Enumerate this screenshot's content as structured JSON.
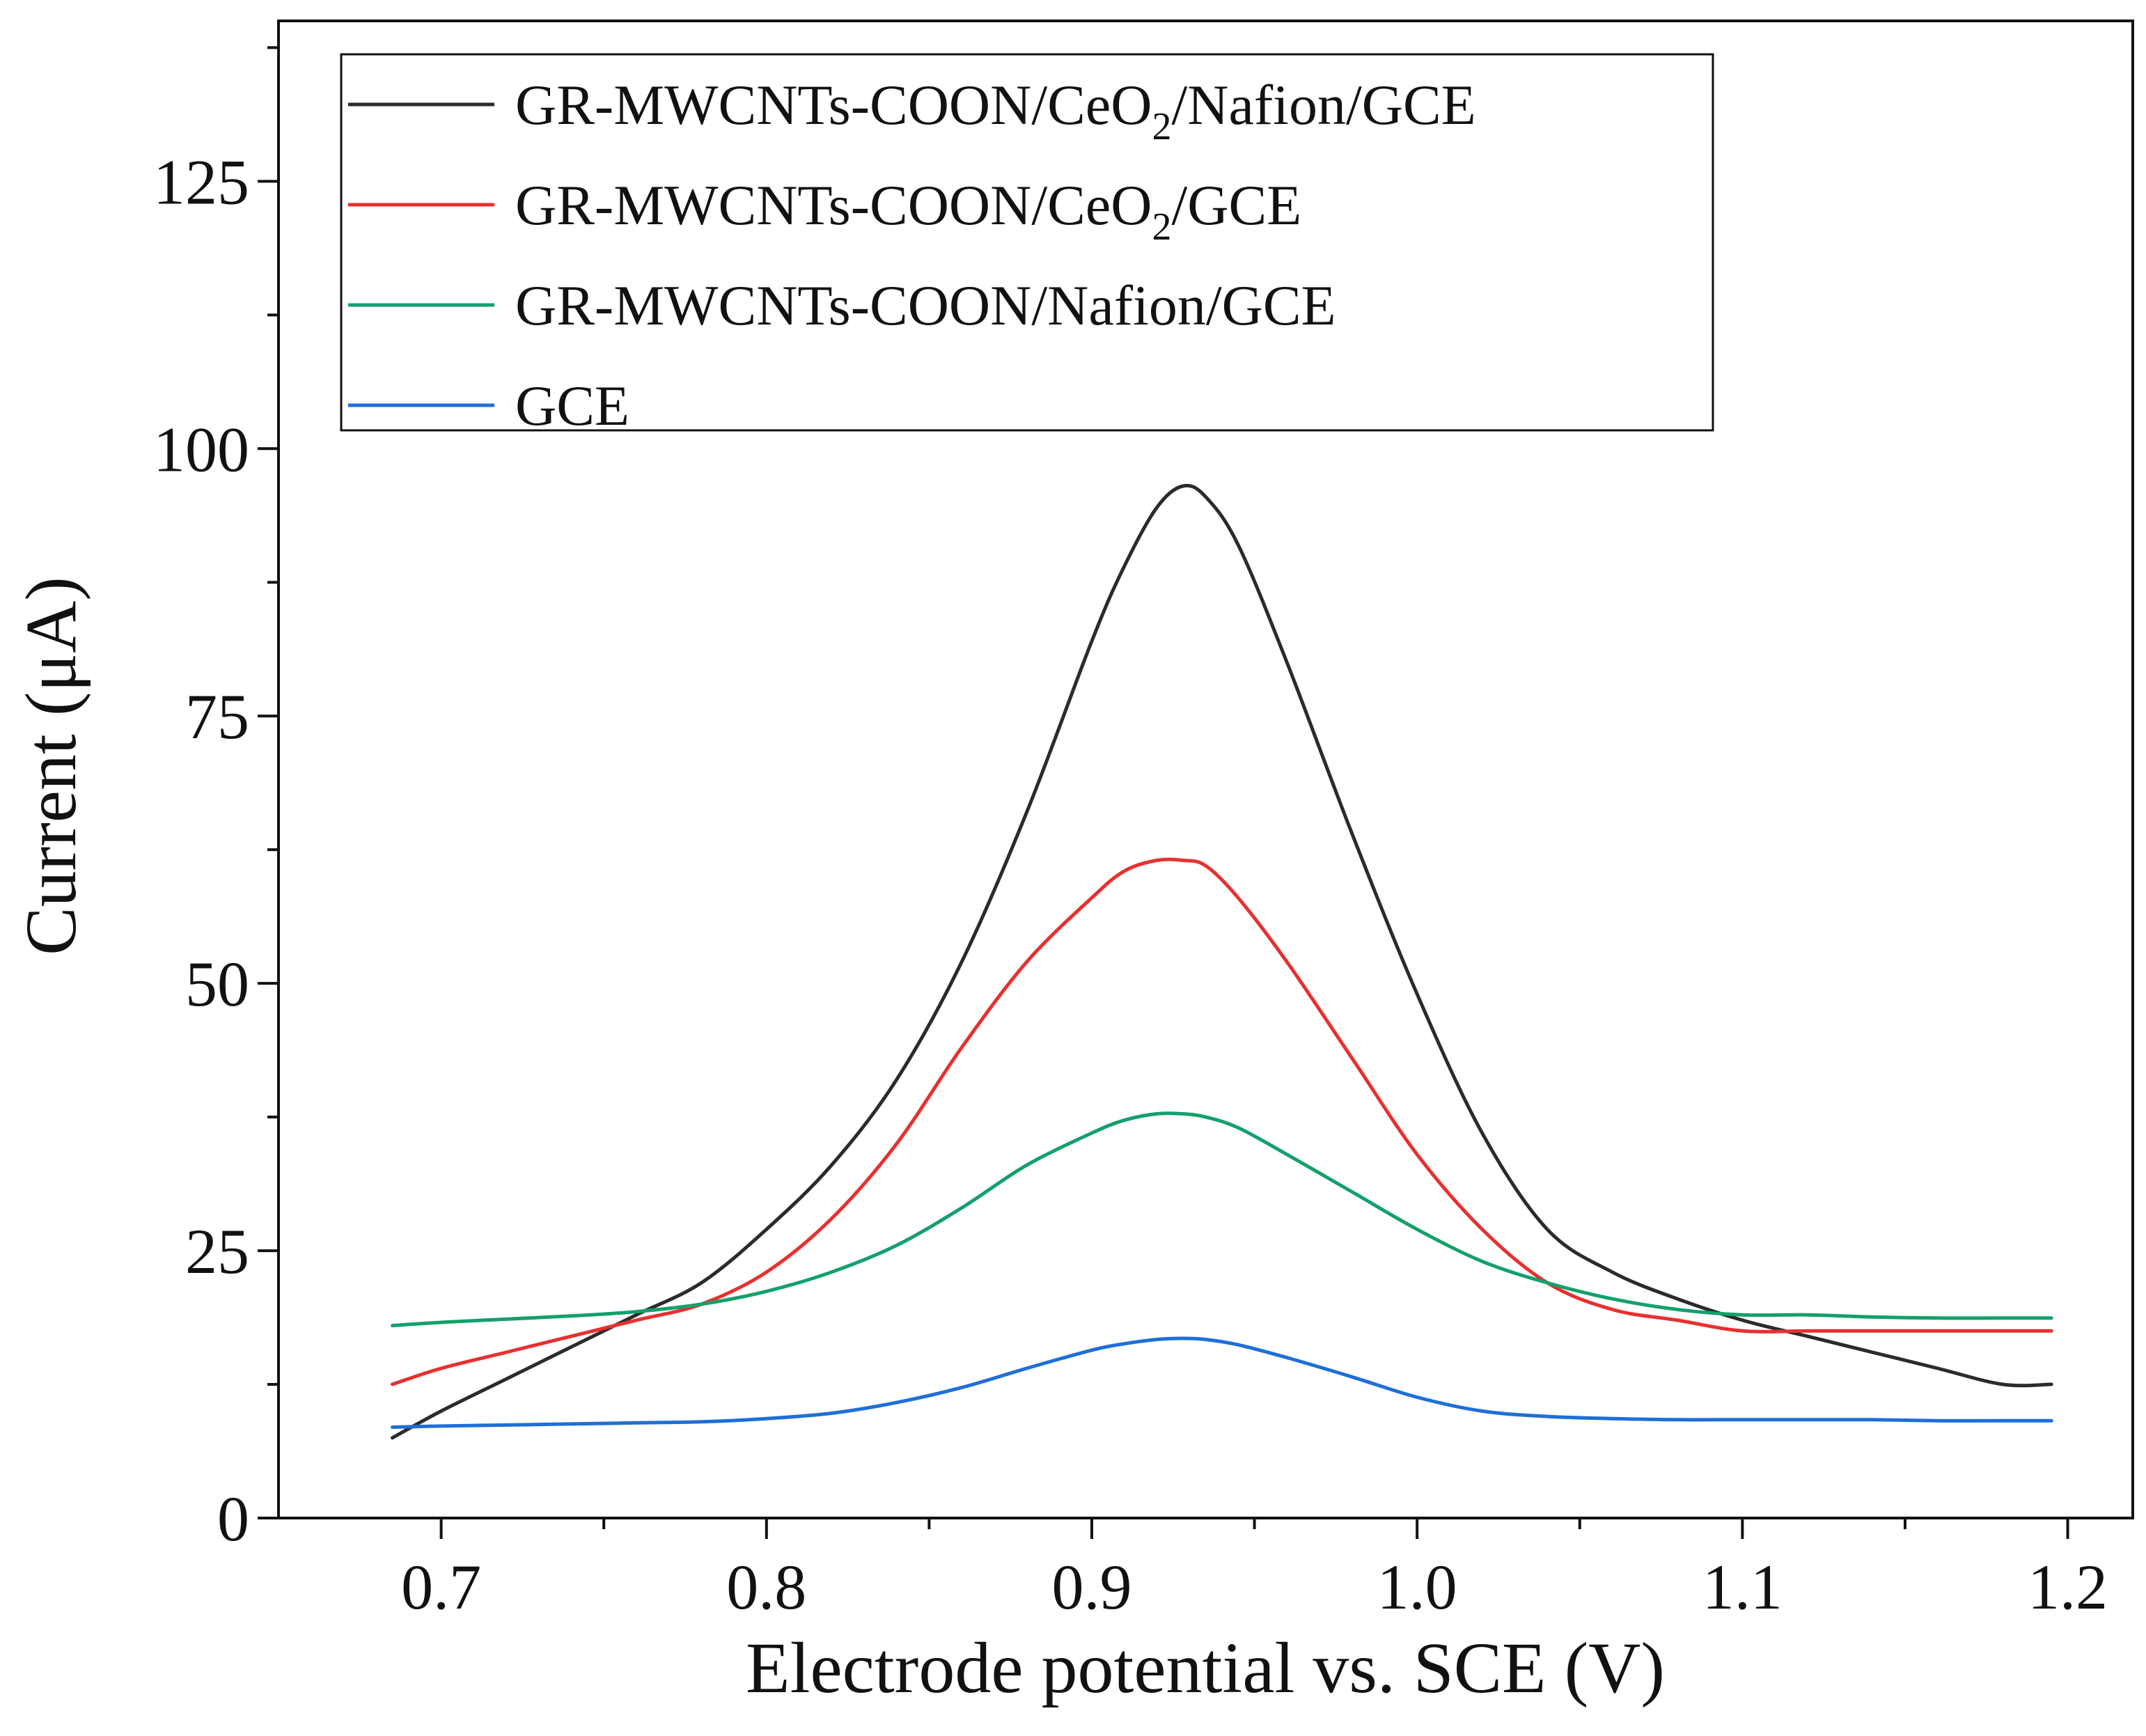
{
  "chart_data": {
    "type": "line",
    "title": "",
    "xlabel": "Electrode potential vs. SCE (V)",
    "ylabel": "Current (μA)",
    "xlim": [
      0.65,
      1.22
    ],
    "ylim": [
      0,
      140
    ],
    "xticks": [
      0.7,
      0.8,
      0.9,
      1.0,
      1.1,
      1.2
    ],
    "xtick_labels": [
      "0.7",
      "0.8",
      "0.9",
      "1.0",
      "1.1",
      "1.2"
    ],
    "xminor_ticks": [
      0.75,
      0.85,
      0.95,
      1.05,
      1.15
    ],
    "yticks": [
      0,
      25,
      50,
      75,
      100,
      125
    ],
    "ytick_labels": [
      "0",
      "25",
      "50",
      "75",
      "100",
      "125"
    ],
    "yminor_ticks": [
      12.5,
      37.5,
      62.5,
      87.5,
      112.5,
      137.5
    ],
    "grid": false,
    "legend_position": "top-left",
    "series": [
      {
        "name": "GR-MWCNTs-COON/CeO2/Nafion/GCE",
        "legend_label": {
          "before": "GR-MWCNTs-COON/CeO",
          "sub": "2",
          "after": "/Nafion/GCE"
        },
        "color": "#2b2b2b",
        "x": [
          0.685,
          0.7,
          0.72,
          0.74,
          0.76,
          0.78,
          0.8,
          0.82,
          0.84,
          0.86,
          0.88,
          0.9,
          0.91,
          0.92,
          0.928,
          0.935,
          0.945,
          0.96,
          0.98,
          1.0,
          1.02,
          1.04,
          1.06,
          1.08,
          1.1,
          1.12,
          1.14,
          1.16,
          1.18,
          1.195
        ],
        "y": [
          7.5,
          10,
          13,
          16,
          19,
          22,
          27,
          33,
          41,
          52,
          66,
          82,
          89,
          94.5,
          96.5,
          95.5,
          91,
          80,
          64,
          49,
          36,
          27,
          23,
          20.5,
          18.5,
          17,
          15.5,
          14,
          12.5,
          12.5
        ]
      },
      {
        "name": "GR-MWCNTs-COON/CeO2/GCE",
        "legend_label": {
          "before": "GR-MWCNTs-COON/CeO",
          "sub": "2",
          "after": "/GCE"
        },
        "color": "#e8302f",
        "x": [
          0.685,
          0.7,
          0.72,
          0.74,
          0.76,
          0.78,
          0.8,
          0.82,
          0.84,
          0.86,
          0.88,
          0.9,
          0.91,
          0.92,
          0.928,
          0.935,
          0.945,
          0.96,
          0.98,
          1.0,
          1.02,
          1.04,
          1.06,
          1.08,
          1.1,
          1.12,
          1.14,
          1.16,
          1.18,
          1.195
        ],
        "y": [
          12.5,
          14,
          15.5,
          17,
          18.5,
          20,
          23,
          28,
          35,
          44,
          52,
          58,
          60.5,
          61.5,
          61.5,
          61,
          58,
          52,
          43,
          34,
          27,
          22,
          19.5,
          18.5,
          17.5,
          17.5,
          17.5,
          17.5,
          17.5,
          17.5
        ]
      },
      {
        "name": "GR-MWCNTs-COON/Nafion/GCE",
        "legend_label": {
          "before": "GR-MWCNTs-COON/Nafion/GCE",
          "sub": "",
          "after": ""
        },
        "color": "#13a06b",
        "x": [
          0.685,
          0.7,
          0.72,
          0.74,
          0.76,
          0.78,
          0.8,
          0.82,
          0.84,
          0.86,
          0.88,
          0.9,
          0.91,
          0.92,
          0.928,
          0.935,
          0.945,
          0.96,
          0.98,
          1.0,
          1.02,
          1.04,
          1.06,
          1.08,
          1.1,
          1.12,
          1.14,
          1.16,
          1.18,
          1.195
        ],
        "y": [
          18,
          18.3,
          18.6,
          18.9,
          19.3,
          20,
          21.2,
          23,
          25.5,
          29,
          33,
          36,
          37.2,
          37.8,
          37.8,
          37.5,
          36.5,
          34,
          30.5,
          27,
          24,
          22,
          20.5,
          19.5,
          19,
          19,
          18.8,
          18.7,
          18.7,
          18.7
        ]
      },
      {
        "name": "GCE",
        "legend_label": {
          "before": "GCE",
          "sub": "",
          "after": ""
        },
        "color": "#1f6fd6",
        "x": [
          0.685,
          0.7,
          0.72,
          0.74,
          0.76,
          0.78,
          0.8,
          0.82,
          0.84,
          0.86,
          0.88,
          0.9,
          0.91,
          0.92,
          0.928,
          0.935,
          0.945,
          0.96,
          0.98,
          1.0,
          1.02,
          1.04,
          1.06,
          1.08,
          1.1,
          1.12,
          1.14,
          1.16,
          1.18,
          1.195
        ],
        "y": [
          8.5,
          8.6,
          8.7,
          8.8,
          8.9,
          9.0,
          9.3,
          9.8,
          10.8,
          12.2,
          14,
          15.7,
          16.3,
          16.7,
          16.8,
          16.7,
          16.2,
          15,
          13.2,
          11.3,
          10,
          9.5,
          9.3,
          9.2,
          9.2,
          9.2,
          9.2,
          9.1,
          9.1,
          9.1
        ]
      }
    ]
  }
}
